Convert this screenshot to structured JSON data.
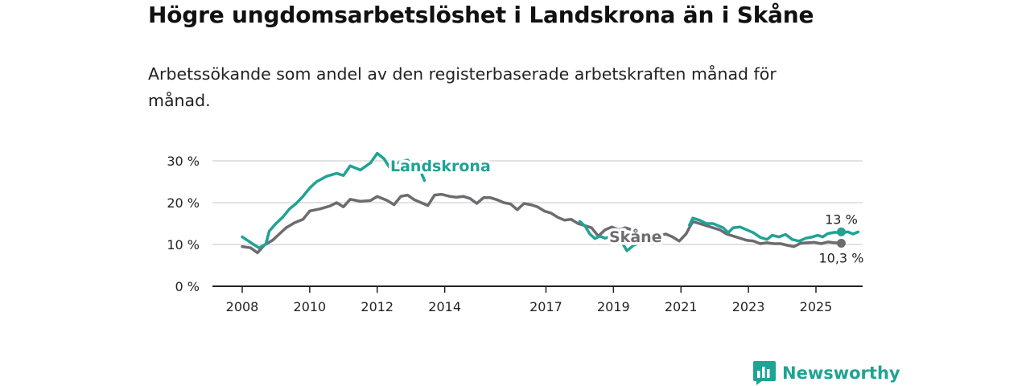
{
  "header": {
    "title": "Högre ungdomsarbetslöshet i Landskrona än i Skåne",
    "subtitle": "Arbetssökande som andel av den registerbaserade arbetskraften månad för månad."
  },
  "branding": {
    "logo_text": "Newsworthy",
    "logo_icon": "bar-chart-speech-icon"
  },
  "colors": {
    "landskrona": "#1fa394",
    "skane": "#6d6b70",
    "grid": "#d9d9d9",
    "axis": "#222222",
    "brand": "#1fa394"
  },
  "chart_data": {
    "type": "line",
    "title": "Högre ungdomsarbetslöshet i Landskrona än i Skåne",
    "xlabel": "",
    "ylabel": "",
    "xlim": [
      2008.0,
      2025.75
    ],
    "ylim": [
      0,
      30
    ],
    "y_ticks": [
      0,
      10,
      20,
      30
    ],
    "y_tick_labels": [
      "0 %",
      "10 %",
      "20 %",
      "30 %"
    ],
    "x_ticks": [
      2008,
      2010,
      2012,
      2014,
      2017,
      2019,
      2021,
      2023,
      2025
    ],
    "x_tick_labels": [
      "2008",
      "2010",
      "2012",
      "2014",
      "2017",
      "2019",
      "2021",
      "2023",
      "2025"
    ],
    "grid": true,
    "legend": "direct labels on lines",
    "series": [
      {
        "name": "Landskrona",
        "color": "#1fa394",
        "end_label": "13 %",
        "points": [
          [
            2008.0,
            11.8
          ],
          [
            2008.3,
            10.2
          ],
          [
            2008.5,
            9.2
          ],
          [
            2008.7,
            10.1
          ],
          [
            2008.8,
            13.2
          ],
          [
            2009.0,
            15.0
          ],
          [
            2009.2,
            16.5
          ],
          [
            2009.4,
            18.5
          ],
          [
            2009.6,
            19.8
          ],
          [
            2009.8,
            21.5
          ],
          [
            2010.0,
            23.5
          ],
          [
            2010.2,
            25.0
          ],
          [
            2010.5,
            26.3
          ],
          [
            2010.8,
            27.0
          ],
          [
            2011.0,
            26.5
          ],
          [
            2011.2,
            28.8
          ],
          [
            2011.5,
            27.8
          ],
          [
            2011.8,
            29.5
          ],
          [
            2012.0,
            31.8
          ],
          [
            2012.2,
            30.5
          ],
          [
            2012.4,
            28.0
          ],
          [
            2012.6,
            29.5
          ],
          [
            2012.9,
            30.2
          ],
          [
            2013.1,
            28.3
          ],
          [
            2013.3,
            27.2
          ],
          [
            2013.4,
            25.3
          ]
        ]
      },
      {
        "name": "Landskrona-2",
        "color": "#1fa394",
        "points": [
          [
            2018.0,
            15.5
          ],
          [
            2018.15,
            14.5
          ],
          [
            2018.3,
            12.5
          ],
          [
            2018.45,
            11.4
          ],
          [
            2018.6,
            12.0
          ],
          [
            2018.75,
            11.5
          ],
          [
            2018.9,
            11.8
          ]
        ]
      },
      {
        "name": "Landskrona-3",
        "color": "#1fa394",
        "points": [
          [
            2019.25,
            10.5
          ],
          [
            2019.4,
            8.5
          ],
          [
            2019.6,
            9.8
          ],
          [
            2019.8,
            10.5
          ]
        ]
      },
      {
        "name": "Landskrona-4",
        "color": "#1fa394",
        "points": [
          [
            2021.25,
            14.6
          ],
          [
            2021.35,
            16.3
          ],
          [
            2021.55,
            15.8
          ],
          [
            2021.75,
            15.0
          ],
          [
            2021.95,
            15.0
          ],
          [
            2022.1,
            14.5
          ],
          [
            2022.25,
            14.0
          ],
          [
            2022.4,
            12.8
          ],
          [
            2022.55,
            14.0
          ],
          [
            2022.75,
            14.2
          ],
          [
            2022.95,
            13.5
          ],
          [
            2023.15,
            12.8
          ],
          [
            2023.35,
            11.7
          ],
          [
            2023.55,
            11.2
          ],
          [
            2023.7,
            12.2
          ],
          [
            2023.9,
            11.8
          ],
          [
            2024.1,
            12.4
          ],
          [
            2024.3,
            11.2
          ],
          [
            2024.5,
            10.8
          ],
          [
            2024.7,
            11.5
          ],
          [
            2024.9,
            11.8
          ],
          [
            2025.05,
            12.2
          ],
          [
            2025.2,
            11.8
          ],
          [
            2025.35,
            12.6
          ],
          [
            2025.55,
            12.9
          ],
          [
            2025.75,
            12.8
          ],
          [
            2025.95,
            13.0
          ],
          [
            2026.1,
            12.5
          ],
          [
            2026.25,
            13.0
          ]
        ]
      },
      {
        "name": "Skåne",
        "color": "#6d6b70",
        "end_label": "10,3 %",
        "points": [
          [
            2008.0,
            9.5
          ],
          [
            2008.25,
            9.2
          ],
          [
            2008.45,
            8.0
          ],
          [
            2008.65,
            9.8
          ],
          [
            2008.9,
            11.0
          ],
          [
            2009.1,
            12.5
          ],
          [
            2009.3,
            14.0
          ],
          [
            2009.55,
            15.2
          ],
          [
            2009.8,
            16.0
          ],
          [
            2010.0,
            18.0
          ],
          [
            2010.3,
            18.5
          ],
          [
            2010.6,
            19.2
          ],
          [
            2010.8,
            20.0
          ],
          [
            2011.0,
            19.0
          ],
          [
            2011.2,
            20.8
          ],
          [
            2011.5,
            20.3
          ],
          [
            2011.8,
            20.5
          ],
          [
            2012.0,
            21.5
          ],
          [
            2012.3,
            20.5
          ],
          [
            2012.5,
            19.5
          ],
          [
            2012.7,
            21.5
          ],
          [
            2012.9,
            21.8
          ],
          [
            2013.1,
            20.7
          ],
          [
            2013.3,
            20.0
          ],
          [
            2013.5,
            19.3
          ],
          [
            2013.7,
            21.8
          ],
          [
            2013.9,
            22.0
          ],
          [
            2014.15,
            21.5
          ],
          [
            2014.35,
            21.3
          ],
          [
            2014.55,
            21.5
          ],
          [
            2014.75,
            21.0
          ],
          [
            2014.95,
            19.8
          ],
          [
            2015.15,
            21.2
          ],
          [
            2015.35,
            21.2
          ],
          [
            2015.55,
            20.7
          ],
          [
            2015.75,
            20.0
          ],
          [
            2015.95,
            19.7
          ],
          [
            2016.15,
            18.3
          ],
          [
            2016.35,
            19.8
          ],
          [
            2016.55,
            19.5
          ],
          [
            2016.75,
            19.0
          ],
          [
            2016.95,
            18.0
          ],
          [
            2017.15,
            17.5
          ],
          [
            2017.35,
            16.5
          ],
          [
            2017.55,
            15.8
          ],
          [
            2017.75,
            16.0
          ],
          [
            2017.95,
            15.0
          ],
          [
            2018.15,
            14.5
          ],
          [
            2018.35,
            14.0
          ],
          [
            2018.55,
            12.0
          ],
          [
            2018.75,
            13.5
          ],
          [
            2018.95,
            14.2
          ],
          [
            2019.15,
            13.5
          ],
          [
            2019.35,
            14.0
          ],
          [
            2019.55,
            13.5
          ],
          [
            2019.75,
            12.5
          ],
          [
            2019.95,
            11.5
          ],
          [
            2020.15,
            11.2
          ],
          [
            2020.35,
            12.0
          ],
          [
            2020.55,
            12.5
          ],
          [
            2020.75,
            11.8
          ],
          [
            2020.95,
            10.8
          ],
          [
            2021.15,
            12.5
          ],
          [
            2021.35,
            15.5
          ],
          [
            2021.55,
            15.0
          ],
          [
            2021.75,
            14.5
          ],
          [
            2021.95,
            14.0
          ],
          [
            2022.15,
            13.5
          ],
          [
            2022.35,
            12.5
          ],
          [
            2022.55,
            12.0
          ],
          [
            2022.75,
            11.5
          ],
          [
            2022.95,
            11.0
          ],
          [
            2023.15,
            10.8
          ],
          [
            2023.35,
            10.2
          ],
          [
            2023.55,
            10.4
          ],
          [
            2023.75,
            10.2
          ],
          [
            2023.95,
            10.2
          ],
          [
            2024.15,
            9.8
          ],
          [
            2024.35,
            9.5
          ],
          [
            2024.55,
            10.3
          ],
          [
            2024.75,
            10.4
          ],
          [
            2024.95,
            10.5
          ],
          [
            2025.15,
            10.2
          ],
          [
            2025.35,
            10.6
          ],
          [
            2025.55,
            10.4
          ],
          [
            2025.75,
            10.3
          ]
        ]
      }
    ]
  }
}
